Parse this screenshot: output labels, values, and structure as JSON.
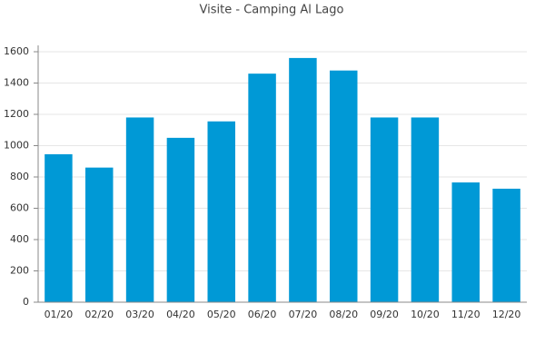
{
  "chart_data": {
    "type": "bar",
    "title": "Visite - Camping Al Lago",
    "categories": [
      "01/20",
      "02/20",
      "03/20",
      "04/20",
      "05/20",
      "06/20",
      "07/20",
      "08/20",
      "09/20",
      "10/20",
      "11/20",
      "12/20"
    ],
    "values": [
      945,
      860,
      1180,
      1050,
      1155,
      1460,
      1560,
      1480,
      1180,
      1180,
      765,
      725
    ],
    "color": "#0099d6",
    "ylim": [
      0,
      1600
    ],
    "yticks": [
      0,
      200,
      400,
      600,
      800,
      1000,
      1200,
      1400,
      1600
    ],
    "grid": true
  }
}
